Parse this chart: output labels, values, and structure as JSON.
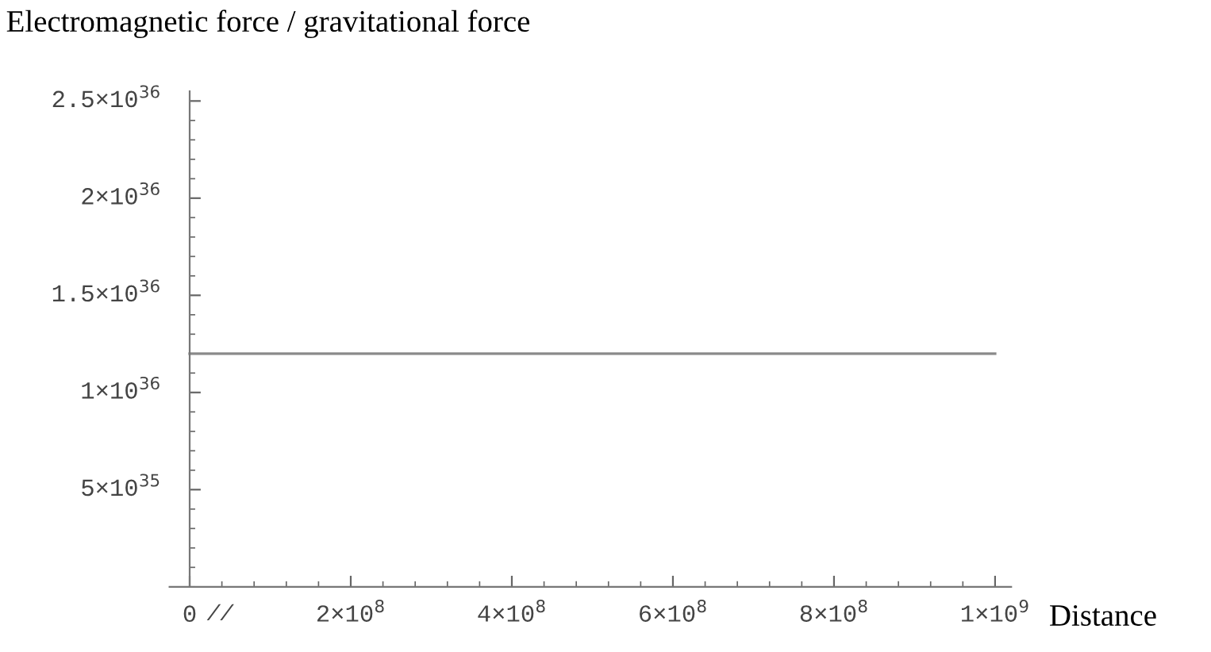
{
  "chart_data": {
    "type": "line",
    "ylabel": "Electromagnetic force / gravitational force",
    "xlabel": "Distance",
    "series": [
      {
        "x": [
          0,
          1000000000
        ],
        "values": [
          1.2e+36,
          1.2e+36
        ],
        "color": "#8a8a8a"
      }
    ],
    "xlim": [
      -25000000,
      1020000000
    ],
    "ylim": [
      0,
      2.55e+36
    ],
    "xticks": [
      0,
      {
        "value": 200000000,
        "label": "2×10$^{8}$"
      },
      {
        "value": 400000000,
        "label": "4×10$^{8}$"
      },
      {
        "value": 600000000,
        "label": "6×10$^{8}$"
      },
      {
        "value": 800000000,
        "label": "8×10$^{8}$"
      },
      {
        "value": 1000000000,
        "label": "1×10$^{9}$"
      }
    ],
    "yticks": [
      {
        "value": 5e+35,
        "label": "5×10$^{35}$"
      },
      {
        "value": 1e+36,
        "label": "1×10$^{36}$"
      },
      {
        "value": 1.5e+36,
        "label": "1.5×10$^{36}$"
      },
      {
        "value": 2e+36,
        "label": "2×10$^{36}$"
      },
      {
        "value": 2.5e+36,
        "label": "2.5×10$^{36}$"
      }
    ],
    "annotations": [
      "//"
    ],
    "grid": false,
    "marker": "none",
    "line_style": "solid"
  }
}
